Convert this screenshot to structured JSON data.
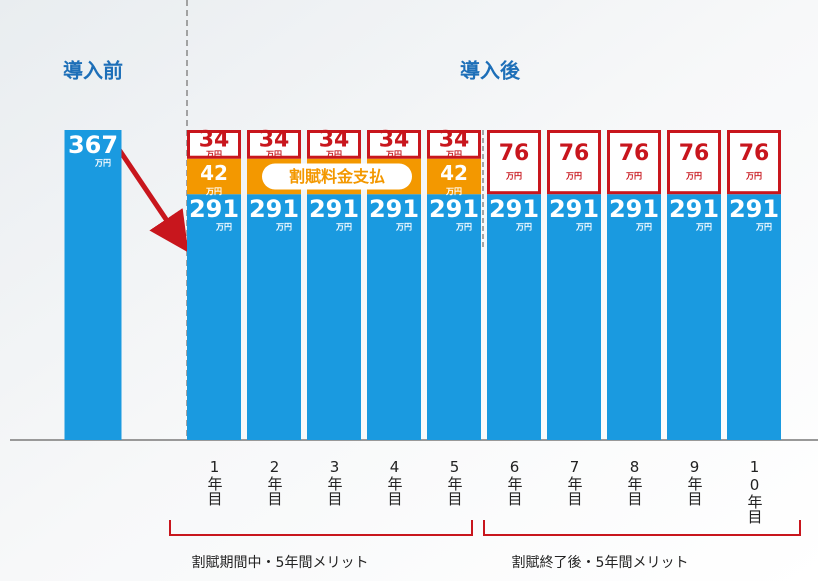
{
  "chart_data": {
    "type": "bar",
    "stacked": true,
    "unit": "万円",
    "groups": [
      "導入前",
      "導入後"
    ],
    "categories": [
      null,
      "1年目",
      "2年目",
      "3年目",
      "4年目",
      "5年目",
      "6年目",
      "7年目",
      "8年目",
      "9年目",
      "10年目"
    ],
    "series": [
      {
        "color": "#1a9ae0",
        "values": [
          367,
          291,
          291,
          291,
          291,
          291,
          291,
          291,
          291,
          291,
          291
        ]
      },
      {
        "color": "#f39800",
        "values": [
          null,
          42,
          42,
          42,
          42,
          42,
          null,
          null,
          null,
          null,
          null
        ],
        "value_labels": [
          null,
          "42",
          null,
          null,
          null,
          "42",
          null,
          null,
          null,
          null,
          null
        ]
      },
      {
        "color": "#c8161d",
        "values": [
          null,
          34,
          34,
          34,
          34,
          34,
          76,
          76,
          76,
          76,
          76
        ]
      }
    ],
    "annotation": "割賦料金支払",
    "brackets": [
      "割賦期間中・5年間メリット",
      "割賦終了後・5年間メリット"
    ],
    "ylim": [
      0,
      367
    ]
  }
}
